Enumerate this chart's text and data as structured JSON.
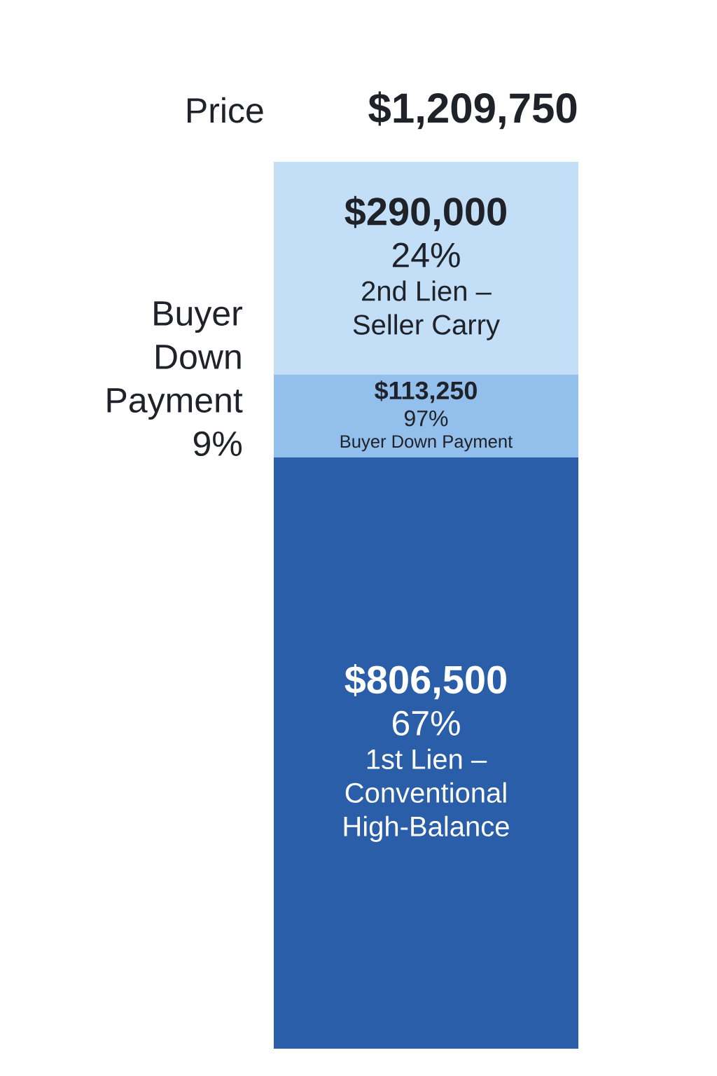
{
  "chart_data": {
    "type": "bar",
    "stacked": true,
    "categories": [
      null
    ],
    "series": [
      {
        "name": "1st Lien – Conventional High-Balance",
        "color": "#2a5ea8",
        "values": [
          806500
        ],
        "value_labels": [
          "$806,500"
        ]
      },
      {
        "name": "Buyer Down Payment",
        "color": "#93bfec",
        "values": [
          113250
        ],
        "value_labels": [
          "$113,250"
        ]
      },
      {
        "name": "2nd Lien – Seller Carry",
        "color": "#c2dff7",
        "values": [
          290000
        ],
        "value_labels": [
          "$290,000"
        ]
      }
    ],
    "totals": [
      "$1,209,750"
    ],
    "annotations": [
      "Price",
      "Buyer Down Payment 9%",
      "67%",
      "97%",
      "24%"
    ]
  }
}
